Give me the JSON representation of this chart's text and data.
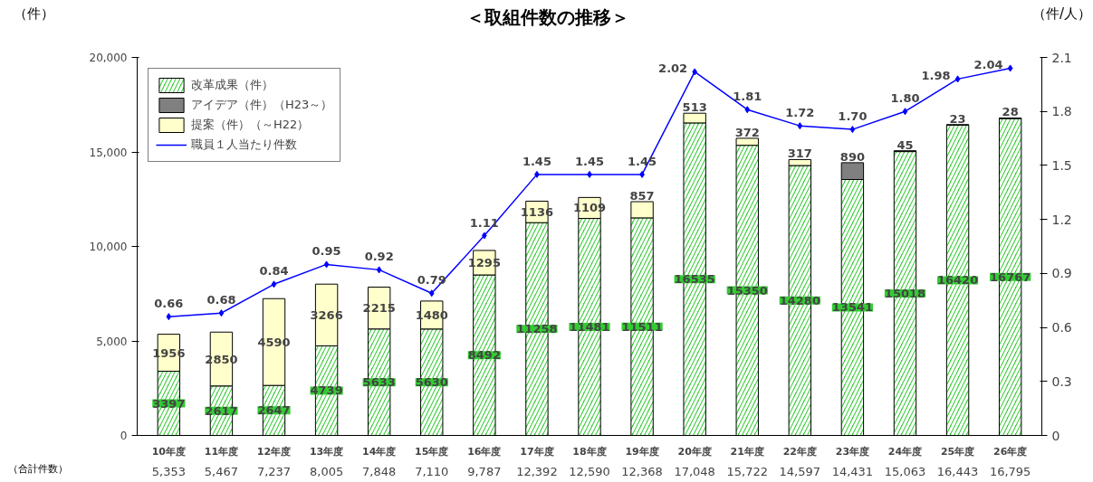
{
  "chart_data": {
    "type": "bar",
    "title": "＜取組件数の推移＞",
    "ylabel": "（件）",
    "y2label": "（件/人）",
    "categories": [
      "10年度",
      "11年度",
      "12年度",
      "13年度",
      "14年度",
      "15年度",
      "16年度",
      "17年度",
      "18年度",
      "19年度",
      "20年度",
      "21年度",
      "22年度",
      "23年度",
      "24年度",
      "25年度",
      "26年度"
    ],
    "stacked": true,
    "data_labels": true,
    "legend": "top left",
    "grid": false,
    "marker": "diamond",
    "line_style": "solid",
    "series": [
      {
        "name": "改革成果（件）",
        "color": "#33cc33",
        "values": [
          3397,
          2617,
          2647,
          4739,
          5633,
          5630,
          8492,
          11258,
          11481,
          11511,
          16535,
          15350,
          14280,
          13541,
          15018,
          16420,
          16767
        ]
      },
      {
        "name": "アイデア（件）（H23～）",
        "color": "#808080",
        "values": [
          null,
          null,
          null,
          null,
          null,
          null,
          null,
          null,
          null,
          null,
          null,
          null,
          null,
          890,
          45,
          23,
          28
        ]
      },
      {
        "name": "提案（件）（～H22）",
        "color": "#ffffcc",
        "values": [
          1956,
          2850,
          4590,
          3266,
          2215,
          1480,
          1295,
          1136,
          1109,
          857,
          513,
          372,
          317,
          null,
          null,
          null,
          null
        ]
      },
      {
        "name": "職員１人当たり件数",
        "type": "line",
        "axis": "y2",
        "color": "#0000ff",
        "values": [
          0.66,
          0.68,
          0.84,
          0.95,
          0.92,
          0.79,
          1.11,
          1.45,
          1.45,
          1.45,
          2.02,
          1.81,
          1.72,
          1.7,
          1.8,
          1.98,
          2.04
        ],
        "value_labels": [
          "0.66",
          "0.68",
          "0.84",
          "0.95",
          "0.92",
          "0.79",
          "1.11",
          "1.45",
          "1.45",
          "1.45",
          "2.02",
          "1.81",
          "1.72",
          "1.70",
          "1.80",
          "1.98",
          "2.04"
        ]
      }
    ],
    "ylim": [
      0,
      20000
    ],
    "yticks": [
      0,
      {
        "value": 5000,
        "label": "5,000"
      },
      {
        "value": 10000,
        "label": "10,000"
      },
      {
        "value": 15000,
        "label": "15,000"
      },
      {
        "value": 20000,
        "label": "20,000"
      }
    ],
    "y2lim": [
      0,
      2.1
    ],
    "y2ticks": [
      0,
      0.3,
      0.6,
      0.9,
      1.2,
      1.5,
      1.8,
      2.1
    ],
    "totals": [
      "5,353",
      "5,467",
      "7,237",
      "8,005",
      "7,848",
      "7,110",
      "9,787",
      "12,392",
      "12,590",
      "12,368",
      "17,048",
      "15,722",
      "14,597",
      "14,431",
      "15,063",
      "16,443",
      "16,795"
    ],
    "annotations": [
      "（合計件数）"
    ]
  }
}
